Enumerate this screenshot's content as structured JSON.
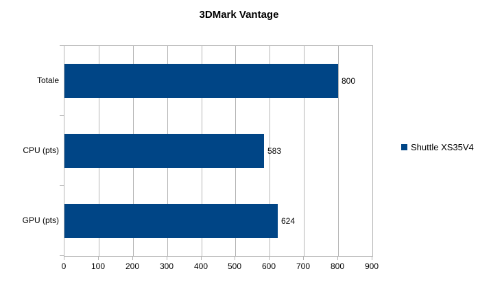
{
  "chart_data": {
    "type": "bar",
    "orientation": "horizontal",
    "title": "3DMark Vantage",
    "categories": [
      "Totale",
      "CPU (pts)",
      "GPU (pts)"
    ],
    "series": [
      {
        "name": "Shuttle XS35V4",
        "values": [
          800,
          583,
          624
        ]
      }
    ],
    "data_labels": [
      "800",
      "583",
      "624"
    ],
    "xlim": [
      0,
      900
    ],
    "x_ticks": [
      0,
      100,
      200,
      300,
      400,
      500,
      600,
      700,
      800,
      900
    ],
    "grid": "vertical-only",
    "legend_position": "right-middle"
  },
  "colors": {
    "bar": "#004586",
    "gridline": "#b3b3b3",
    "text": "#000000",
    "background": "#ffffff"
  }
}
